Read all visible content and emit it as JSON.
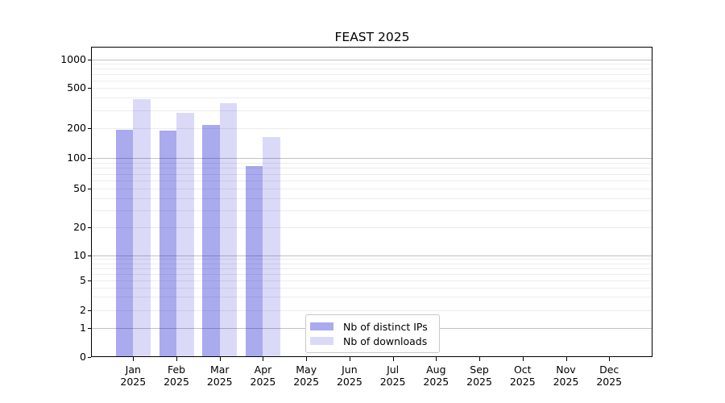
{
  "title": "FEAST 2025",
  "colors": {
    "background": "#ffffff",
    "bar_distinct_ips": "rgba(0,0,205,0.335)",
    "bar_downloads": "rgba(0,0,205,0.147)",
    "grid_major": "#c2c2c2",
    "grid_minor": "#ececec",
    "axis_spine": "#000000"
  },
  "legend": {
    "items": [
      {
        "label": "Nb of distinct IPs",
        "series": "distinct_ips"
      },
      {
        "label": "Nb of downloads",
        "series": "downloads"
      }
    ],
    "position": "lower center"
  },
  "x_axis": {
    "tick_year": "2025",
    "tick_months": [
      "Jan",
      "Feb",
      "Mar",
      "Apr",
      "May",
      "Jun",
      "Jul",
      "Aug",
      "Sep",
      "Oct",
      "Nov",
      "Dec"
    ]
  },
  "y_axis": {
    "scale": "symlog",
    "ticks": [
      {
        "value": 1000,
        "label": "1000"
      },
      {
        "value": 500,
        "label": "500"
      },
      {
        "value": 200,
        "label": "200"
      },
      {
        "value": 100,
        "label": "100"
      },
      {
        "value": 50,
        "label": "50"
      },
      {
        "value": 20,
        "label": "20"
      },
      {
        "value": 10,
        "label": "10"
      },
      {
        "value": 5,
        "label": "5"
      },
      {
        "value": 2,
        "label": "2"
      },
      {
        "value": 1,
        "label": "1"
      },
      {
        "value": 0,
        "label": "0"
      }
    ],
    "major_gridlines": [
      1,
      10,
      100,
      1000
    ],
    "minor_gridlines": [
      2,
      3,
      4,
      5,
      6,
      7,
      8,
      9,
      20,
      30,
      40,
      50,
      60,
      70,
      80,
      90,
      200,
      300,
      400,
      500,
      600,
      700,
      800,
      900
    ]
  },
  "chart_data": {
    "type": "bar",
    "title": "FEAST 2025",
    "categories": [
      "Jan 2025",
      "Feb 2025",
      "Mar 2025",
      "Apr 2025",
      "May 2025",
      "Jun 2025",
      "Jul 2025",
      "Aug 2025",
      "Sep 2025",
      "Oct 2025",
      "Nov 2025",
      "Dec 2025"
    ],
    "series": [
      {
        "name": "Nb of distinct IPs",
        "values": [
          192,
          188,
          212,
          84,
          null,
          null,
          null,
          null,
          null,
          null,
          null,
          null
        ]
      },
      {
        "name": "Nb of downloads",
        "values": [
          385,
          283,
          352,
          161,
          null,
          null,
          null,
          null,
          null,
          null,
          null,
          null
        ]
      }
    ],
    "xlabel": "",
    "ylabel": "",
    "ylim": [
      0,
      1300
    ],
    "grid": true,
    "legend_position": "lower center"
  }
}
